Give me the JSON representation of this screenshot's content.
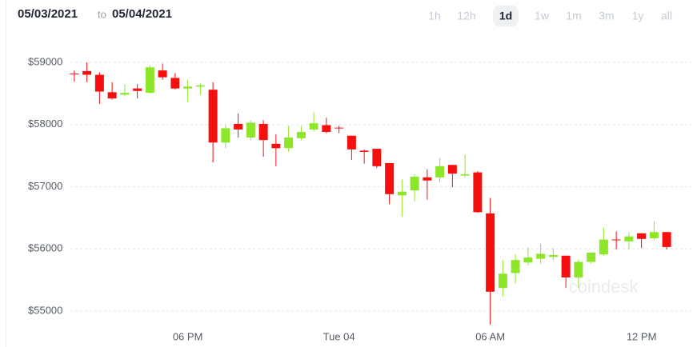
{
  "header": {
    "from": "05/03/2021",
    "to_word": "to",
    "to": "05/04/2021",
    "timeframes": [
      "1h",
      "12h",
      "1d",
      "1w",
      "1m",
      "3m",
      "1y",
      "all"
    ],
    "selected_timeframe": 2
  },
  "chart_data": {
    "type": "candlestick",
    "watermark": "coindesk",
    "categories": [
      null,
      null,
      null,
      null,
      null,
      null,
      null,
      null,
      null,
      "06 PM",
      null,
      null,
      null,
      null,
      null,
      null,
      null,
      null,
      null,
      null,
      null,
      "Tue 04",
      null,
      null,
      null,
      null,
      null,
      null,
      null,
      null,
      null,
      null,
      null,
      "06 AM",
      null,
      null,
      null,
      null,
      null,
      null,
      null,
      null,
      null,
      null,
      null,
      "12 PM",
      null,
      null
    ],
    "open": [
      58820,
      58860,
      58800,
      58520,
      58480,
      58580,
      58510,
      58870,
      58750,
      58580,
      58610,
      58560,
      57710,
      58010,
      57790,
      58010,
      57690,
      57620,
      57780,
      57920,
      57990,
      57950,
      57820,
      57580,
      57610,
      57380,
      56860,
      56940,
      57150,
      57150,
      57350,
      57180,
      57230,
      56570,
      55370,
      55610,
      55780,
      55840,
      55870,
      55890,
      55540,
      55790,
      55910,
      56150,
      56120,
      56250,
      56170,
      56270
    ],
    "high": [
      58870,
      59000,
      58840,
      58680,
      58650,
      58650,
      58950,
      58980,
      58830,
      58720,
      58660,
      58680,
      58000,
      58180,
      58070,
      58070,
      57840,
      57980,
      57980,
      58200,
      58110,
      57980,
      57820,
      57600,
      57610,
      57380,
      57110,
      57200,
      57280,
      57460,
      57350,
      57520,
      57250,
      56820,
      55820,
      55910,
      56020,
      56080,
      56010,
      55890,
      55830,
      55940,
      56340,
      56280,
      56270,
      56250,
      56440,
      56270
    ],
    "low": [
      58690,
      58680,
      58330,
      58400,
      58460,
      58420,
      58500,
      58720,
      58560,
      58360,
      58480,
      57390,
      57620,
      57790,
      57750,
      57480,
      57330,
      57560,
      57750,
      57890,
      57860,
      57860,
      57430,
      57370,
      57300,
      56720,
      56520,
      56760,
      56790,
      57070,
      56990,
      57150,
      56580,
      54780,
      55230,
      55440,
      55730,
      55760,
      55820,
      55370,
      55370,
      55760,
      55890,
      55990,
      55990,
      56010,
      56140,
      55990
    ],
    "close": [
      58810,
      58800,
      58530,
      58420,
      58510,
      58540,
      58920,
      58760,
      58580,
      58610,
      58630,
      57710,
      57940,
      57920,
      58030,
      57750,
      57620,
      57790,
      57880,
      58020,
      57880,
      57940,
      57600,
      57560,
      57330,
      56880,
      56920,
      57160,
      57100,
      57330,
      57210,
      57200,
      56590,
      55310,
      55600,
      55820,
      55860,
      55920,
      55900,
      55540,
      55790,
      55940,
      56150,
      56140,
      56200,
      56160,
      56270,
      56030
    ],
    "up_color": "#8ee62b",
    "down_color": "#f60f0f",
    "ylim": [
      54750,
      59200
    ],
    "yticks": [
      {
        "value": 55000,
        "label": "$55000"
      },
      {
        "value": 56000,
        "label": "$56000"
      },
      {
        "value": 57000,
        "label": "$57000"
      },
      {
        "value": 58000,
        "label": "$58000"
      },
      {
        "value": 59000,
        "label": "$59000"
      }
    ],
    "grid": true
  }
}
